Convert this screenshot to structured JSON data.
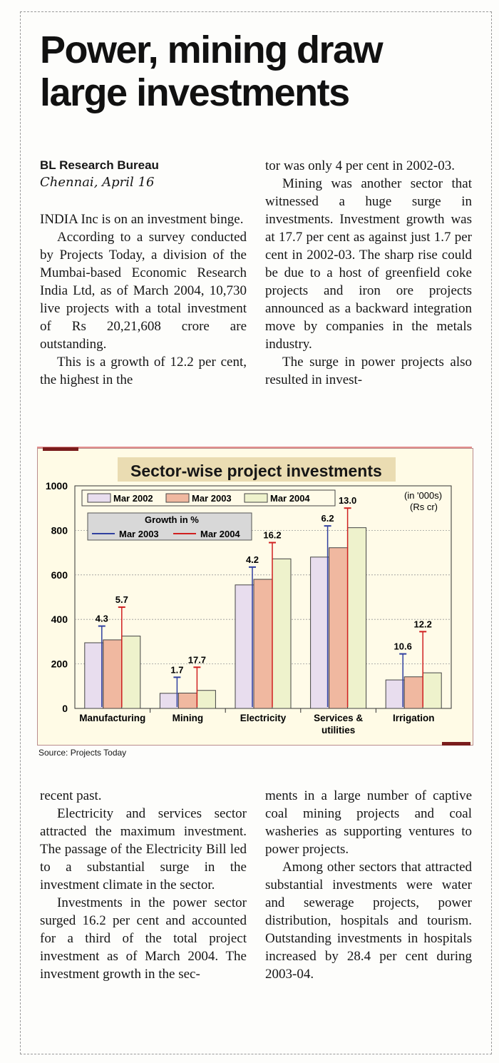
{
  "article": {
    "headline_line1": "Power, mining draw",
    "headline_line2": "large investments",
    "byline": "BL Research Bureau",
    "dateline": "Chennai, April 16",
    "col1_top": [
      "INDIA Inc is on an investment binge.",
      "According to a survey conducted by Projects Today, a division of the Mumbai-based Economic Research India Ltd, as of March 2004, 10,730 live projects with a total investment of Rs 20,21,608 crore are outstanding.",
      "This is a growth of 12.2 per cent, the highest in the"
    ],
    "col2_top": [
      "tor was only 4 per cent in 2002-03.",
      "Mining was another sector that witnessed a huge surge in investments. Investment growth was at 17.7 per cent as against just 1.7 per cent in 2002-03. The sharp rise could be due to a host of greenfield coke projects and iron ore projects announced as a backward integration move by companies in the metals industry.",
      "The surge in power projects also resulted in invest-"
    ],
    "col1_bottom": [
      "recent past.",
      "Electricity and services sector attracted the maximum investment. The passage of the Electricity Bill led to a substantial surge in the investment climate in the sector.",
      "Investments in the power sector surged 16.2 per cent and accounted for a third of the total project investment as of March 2004. The investment growth in the sec-"
    ],
    "col2_bottom": [
      "ments in a large number of captive coal mining projects and coal washeries as supporting ventures to power projects.",
      "Among other sectors that attracted substantial investments were water and sewerage projects, power distribution, hospitals and tourism. Outstanding investments in hospitals increased by 28.4 per cent during 2003-04."
    ]
  },
  "colors": {
    "mar2002": "#e8ddee",
    "mar2003": "#f0b8a0",
    "mar2004": "#eef2cc",
    "growth2003": "#3040a0",
    "growth2004": "#d02020"
  },
  "chart_data": {
    "type": "bar",
    "title": "Sector-wise project investments",
    "units_line1": "(in '000s)",
    "units_line2": "(Rs cr)",
    "source": "Source: Projects Today",
    "categories": [
      [
        "Manufacturing"
      ],
      [
        "Mining"
      ],
      [
        "Electricity"
      ],
      [
        "Services &",
        "utilities"
      ],
      [
        "Irrigation"
      ]
    ],
    "ylim": [
      0,
      1000
    ],
    "yticks": [
      0,
      200,
      400,
      600,
      800,
      1000
    ],
    "series": [
      {
        "name": "Mar 2002",
        "values": [
          295,
          68,
          555,
          680,
          128
        ]
      },
      {
        "name": "Mar 2003",
        "values": [
          308,
          69,
          580,
          722,
          142
        ]
      },
      {
        "name": "Mar 2004",
        "values": [
          325,
          81,
          672,
          812,
          160
        ]
      }
    ],
    "growth_legend_title": "Growth in %",
    "growth_series": [
      {
        "name": "Mar 2003",
        "labels": [
          "4.3",
          "1.7",
          "4.2",
          "6.2",
          "10.6"
        ]
      },
      {
        "name": "Mar 2004",
        "labels": [
          "5.7",
          "17.7",
          "16.2",
          "13.0",
          "12.2"
        ]
      }
    ],
    "growth_marker_values": [
      [
        370,
        140,
        635,
        820,
        245
      ],
      [
        455,
        185,
        745,
        900,
        345
      ]
    ]
  }
}
